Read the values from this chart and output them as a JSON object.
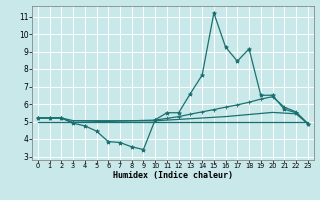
{
  "bg_color": "#c8e8ea",
  "grid_color": "#ffffff",
  "line_color": "#1a7070",
  "xlabel": "Humidex (Indice chaleur)",
  "xlim": [
    -0.5,
    23.5
  ],
  "ylim": [
    2.8,
    11.6
  ],
  "yticks": [
    3,
    4,
    5,
    6,
    7,
    8,
    9,
    10,
    11
  ],
  "xticks": [
    0,
    1,
    2,
    3,
    4,
    5,
    6,
    7,
    8,
    9,
    10,
    11,
    12,
    13,
    14,
    15,
    16,
    17,
    18,
    19,
    20,
    21,
    22,
    23
  ],
  "series": [
    {
      "x": [
        0,
        1,
        2,
        3,
        4,
        5,
        6,
        7,
        8,
        9,
        10,
        11,
        12,
        13,
        14,
        15,
        16,
        17,
        18,
        19,
        20,
        21,
        22,
        23
      ],
      "y": [
        5.2,
        5.2,
        5.2,
        4.9,
        4.75,
        4.45,
        3.85,
        3.8,
        3.55,
        3.4,
        5.1,
        5.5,
        5.5,
        6.6,
        7.65,
        11.2,
        9.25,
        8.45,
        9.15,
        6.5,
        6.5,
        5.7,
        5.5,
        4.88
      ],
      "marker": "*",
      "ms": 3.0,
      "lw": 0.9
    },
    {
      "x": [
        0,
        1,
        2,
        3,
        10,
        11,
        12,
        13,
        14,
        15,
        16,
        17,
        18,
        19,
        20,
        21,
        22,
        23
      ],
      "y": [
        5.2,
        5.2,
        5.2,
        4.95,
        5.08,
        5.18,
        5.28,
        5.42,
        5.55,
        5.68,
        5.82,
        5.95,
        6.1,
        6.28,
        6.42,
        5.82,
        5.55,
        4.88
      ],
      "marker": "+",
      "ms": 3.0,
      "lw": 0.9
    },
    {
      "x": [
        0,
        1,
        2,
        3,
        10,
        11,
        12,
        13,
        14,
        15,
        16,
        17,
        18,
        19,
        20,
        21,
        22,
        23
      ],
      "y": [
        5.2,
        5.2,
        5.2,
        5.05,
        5.04,
        5.08,
        5.12,
        5.16,
        5.2,
        5.24,
        5.28,
        5.34,
        5.4,
        5.46,
        5.52,
        5.48,
        5.44,
        4.88
      ],
      "marker": null,
      "ms": 0,
      "lw": 0.9
    },
    {
      "x": [
        0,
        23
      ],
      "y": [
        5.0,
        5.0
      ],
      "marker": null,
      "ms": 0,
      "lw": 0.9
    }
  ]
}
